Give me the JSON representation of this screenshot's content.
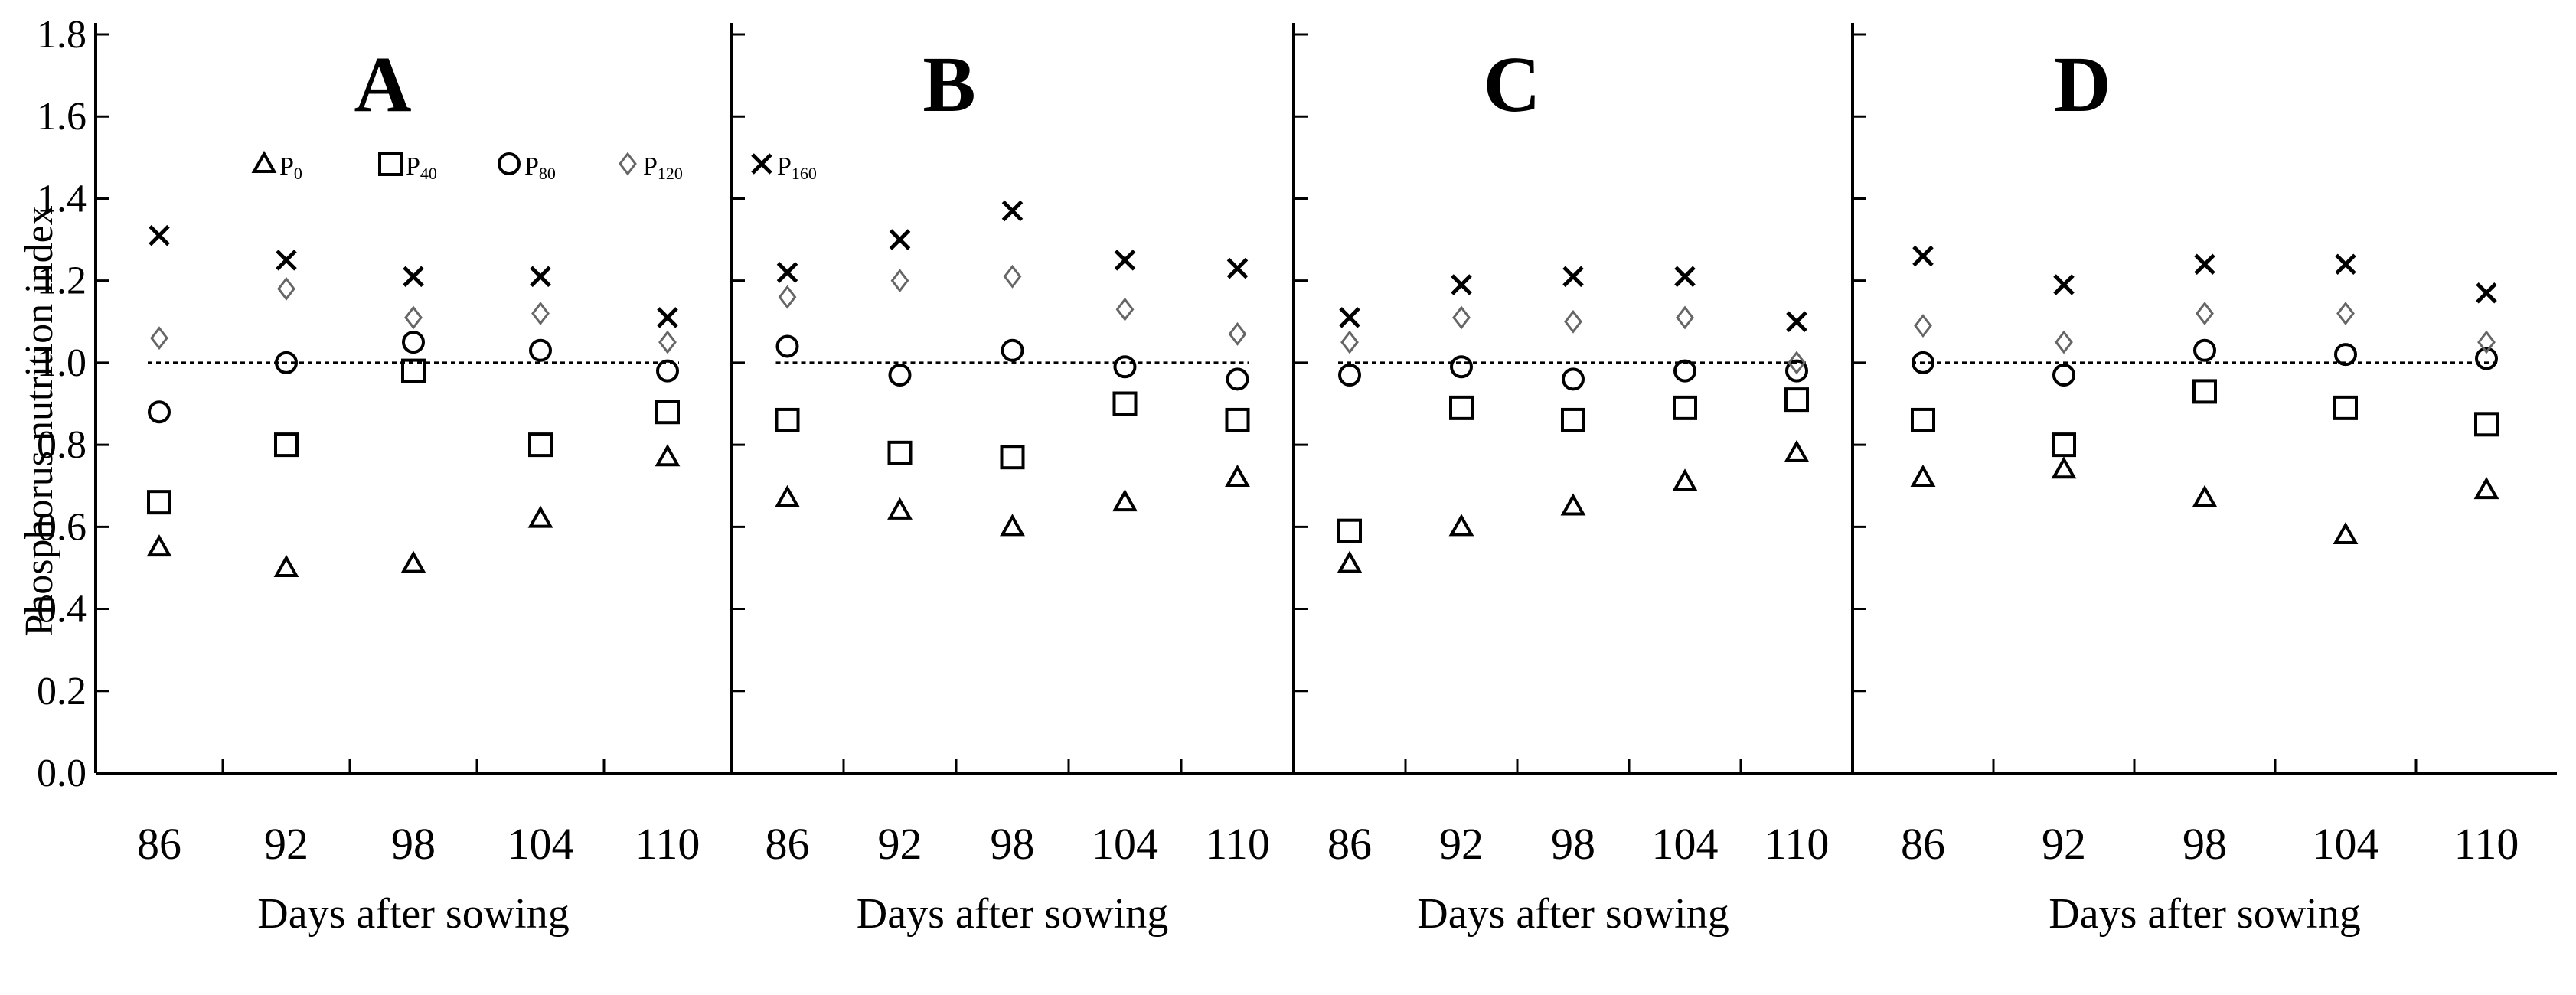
{
  "chart_data": [
    {
      "type": "scatter",
      "panel": "A",
      "x": [
        86,
        92,
        98,
        104,
        110
      ],
      "xlabel": "Days after sowing",
      "ylabel": "Phosphorus nutrition index",
      "ylim": [
        0,
        1.8
      ],
      "yticks": [
        "0.0",
        "0.2",
        "0.4",
        "0.6",
        "0.8",
        "1.0",
        "1.2",
        "1.4",
        "1.6",
        "1.8"
      ],
      "reference_line": 1.0,
      "legend": [
        {
          "label": "P",
          "sub": "0",
          "marker": "triangle"
        },
        {
          "label": "P",
          "sub": "40",
          "marker": "square"
        },
        {
          "label": "P",
          "sub": "80",
          "marker": "circle"
        },
        {
          "label": "P",
          "sub": "120",
          "marker": "diamond"
        },
        {
          "label": "P",
          "sub": "160",
          "marker": "cross"
        }
      ],
      "series": [
        {
          "marker": "triangle",
          "values": [
            0.55,
            0.5,
            0.51,
            0.62,
            0.77
          ]
        },
        {
          "marker": "square",
          "values": [
            0.66,
            0.8,
            0.98,
            0.8,
            0.88
          ]
        },
        {
          "marker": "circle",
          "values": [
            0.88,
            1.0,
            1.05,
            1.03,
            0.98
          ]
        },
        {
          "marker": "diamond",
          "values": [
            1.06,
            1.18,
            1.11,
            1.12,
            1.05
          ]
        },
        {
          "marker": "cross",
          "values": [
            1.31,
            1.25,
            1.21,
            1.21,
            1.11
          ]
        }
      ]
    },
    {
      "type": "scatter",
      "panel": "B",
      "x": [
        86,
        92,
        98,
        104,
        110
      ],
      "xlabel": "Days after sowing",
      "ylim": [
        0,
        1.8
      ],
      "reference_line": 1.0,
      "series": [
        {
          "marker": "triangle",
          "values": [
            0.67,
            0.64,
            0.6,
            0.66,
            0.72
          ]
        },
        {
          "marker": "square",
          "values": [
            0.86,
            0.78,
            0.77,
            0.9,
            0.86
          ]
        },
        {
          "marker": "circle",
          "values": [
            1.04,
            0.97,
            1.03,
            0.99,
            0.96
          ]
        },
        {
          "marker": "diamond",
          "values": [
            1.16,
            1.2,
            1.21,
            1.13,
            1.07
          ]
        },
        {
          "marker": "cross",
          "values": [
            1.22,
            1.3,
            1.37,
            1.25,
            1.23
          ]
        }
      ]
    },
    {
      "type": "scatter",
      "panel": "C",
      "x": [
        86,
        92,
        98,
        104,
        110
      ],
      "xlabel": "Days after sowing",
      "ylim": [
        0,
        1.8
      ],
      "reference_line": 1.0,
      "series": [
        {
          "marker": "triangle",
          "values": [
            0.51,
            0.6,
            0.65,
            0.71,
            0.78
          ]
        },
        {
          "marker": "square",
          "values": [
            0.59,
            0.89,
            0.86,
            0.89,
            0.91
          ]
        },
        {
          "marker": "circle",
          "values": [
            0.97,
            0.99,
            0.96,
            0.98,
            0.98
          ]
        },
        {
          "marker": "diamond",
          "values": [
            1.05,
            1.11,
            1.1,
            1.11,
            1.0
          ]
        },
        {
          "marker": "cross",
          "values": [
            1.11,
            1.19,
            1.21,
            1.21,
            1.1
          ]
        }
      ]
    },
    {
      "type": "scatter",
      "panel": "D",
      "x": [
        86,
        92,
        98,
        104,
        110
      ],
      "xlabel": "Days after sowing",
      "ylim": [
        0,
        1.8
      ],
      "reference_line": 1.0,
      "series": [
        {
          "marker": "triangle",
          "values": [
            0.72,
            0.74,
            0.67,
            0.58,
            0.69
          ]
        },
        {
          "marker": "square",
          "values": [
            0.86,
            0.8,
            0.93,
            0.89,
            0.85
          ]
        },
        {
          "marker": "circle",
          "values": [
            1.0,
            0.97,
            1.03,
            1.02,
            1.01
          ]
        },
        {
          "marker": "diamond",
          "values": [
            1.09,
            1.05,
            1.12,
            1.12,
            1.05
          ]
        },
        {
          "marker": "cross",
          "values": [
            1.26,
            1.19,
            1.24,
            1.24,
            1.17
          ]
        }
      ]
    }
  ]
}
